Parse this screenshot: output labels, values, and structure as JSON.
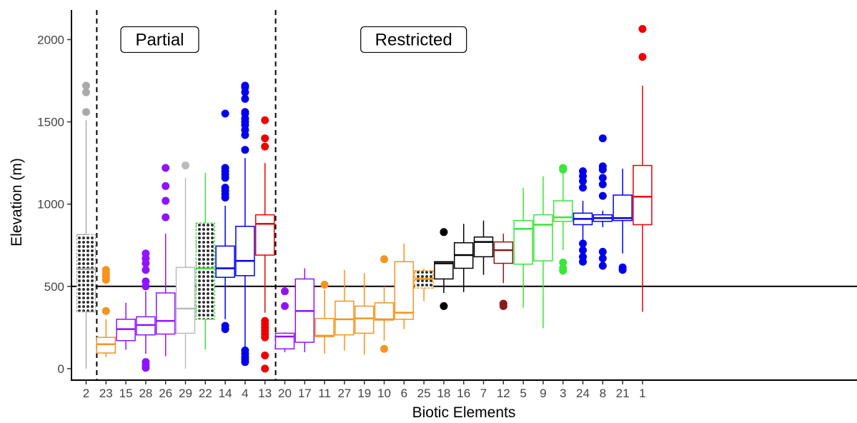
{
  "chart_data": {
    "type": "boxplot",
    "xlabel": "Biotic Elements",
    "ylabel": "Elevation (m)",
    "ylim": [
      -70,
      2180
    ],
    "y_ticks": [
      0,
      500,
      1000,
      1500,
      2000
    ],
    "reference_line": 500,
    "regions": [
      {
        "label": "Partial",
        "from_index": 1,
        "to_index": 9
      },
      {
        "label": "Restricted",
        "from_index": 10,
        "to_index": 28
      }
    ],
    "categories": [
      "2",
      "23",
      "15",
      "28",
      "26",
      "29",
      "22",
      "14",
      "4",
      "13",
      "20",
      "17",
      "11",
      "27",
      "19",
      "10",
      "6",
      "25",
      "18",
      "16",
      "7",
      "12",
      "5",
      "9",
      "3",
      "24",
      "8",
      "21",
      "1"
    ],
    "boxes": [
      {
        "label": "2",
        "color": "#aaaaaa",
        "hatched": true,
        "lower": 0,
        "q1": 345,
        "median": 605,
        "q3": 815,
        "upper": 1510,
        "outliers": [
          1560,
          1680,
          1720
        ]
      },
      {
        "label": "23",
        "color": "#f7931e",
        "hatched": false,
        "lower": 70,
        "q1": 95,
        "median": 148,
        "q3": 190,
        "upper": 300,
        "outliers": [
          350,
          540,
          560,
          580,
          600
        ]
      },
      {
        "label": "15",
        "color": "#9013fe",
        "hatched": false,
        "lower": 115,
        "q1": 170,
        "median": 240,
        "q3": 300,
        "upper": 400,
        "outliers": []
      },
      {
        "label": "28",
        "color": "#9013fe",
        "hatched": false,
        "lower": 90,
        "q1": 205,
        "median": 265,
        "q3": 315,
        "upper": 470,
        "outliers": [
          5,
          20,
          40,
          500,
          530,
          600,
          640,
          670,
          700
        ]
      },
      {
        "label": "26",
        "color": "#9013fe",
        "hatched": false,
        "lower": 75,
        "q1": 210,
        "median": 290,
        "q3": 460,
        "upper": 820,
        "outliers": [
          920,
          1020,
          1110,
          1220
        ]
      },
      {
        "label": "29",
        "color": "#bbbbbb",
        "hatched": false,
        "lower": 0,
        "q1": 215,
        "median": 365,
        "q3": 615,
        "upper": 1160,
        "outliers": [
          1235
        ]
      },
      {
        "label": "22",
        "color": "#39e639",
        "hatched": true,
        "lower": 115,
        "q1": 300,
        "median": 610,
        "q3": 885,
        "upper": 1190,
        "outliers": []
      },
      {
        "label": "14",
        "color": "#0000ee",
        "hatched": false,
        "lower": 300,
        "q1": 555,
        "median": 610,
        "q3": 745,
        "upper": 990,
        "outliers": [
          240,
          260,
          1040,
          1060,
          1080,
          1100,
          1160,
          1180,
          1200,
          1220,
          1550
        ]
      },
      {
        "label": "4",
        "color": "#0000ee",
        "hatched": false,
        "lower": 130,
        "q1": 565,
        "median": 655,
        "q3": 865,
        "upper": 1280,
        "outliers": [
          40,
          55,
          70,
          90,
          110,
          1330,
          1420,
          1450,
          1480,
          1500,
          1520,
          1550,
          1560,
          1640,
          1680,
          1710,
          1720
        ]
      },
      {
        "label": "13",
        "color": "#ee0000",
        "hatched": false,
        "lower": 340,
        "q1": 690,
        "median": 880,
        "q3": 935,
        "upper": 1250,
        "outliers": [
          0,
          80,
          190,
          210,
          230,
          250,
          270,
          290,
          1350,
          1400,
          1510
        ]
      },
      {
        "label": "20",
        "color": "#9013fe",
        "hatched": false,
        "lower": 100,
        "q1": 120,
        "median": 195,
        "q3": 215,
        "upper": 220,
        "outliers": [
          380,
          470
        ]
      },
      {
        "label": "17",
        "color": "#9013fe",
        "hatched": false,
        "lower": 100,
        "q1": 160,
        "median": 350,
        "q3": 545,
        "upper": 610,
        "outliers": []
      },
      {
        "label": "11",
        "color": "#f7931e",
        "hatched": false,
        "lower": 90,
        "q1": 195,
        "median": 200,
        "q3": 305,
        "upper": 480,
        "outliers": [
          510
        ]
      },
      {
        "label": "27",
        "color": "#f7931e",
        "hatched": false,
        "lower": 110,
        "q1": 205,
        "median": 300,
        "q3": 410,
        "upper": 600,
        "outliers": []
      },
      {
        "label": "19",
        "color": "#f7931e",
        "hatched": false,
        "lower": 85,
        "q1": 215,
        "median": 305,
        "q3": 380,
        "upper": 580,
        "outliers": []
      },
      {
        "label": "10",
        "color": "#f7931e",
        "hatched": false,
        "lower": 170,
        "q1": 295,
        "median": 300,
        "q3": 400,
        "upper": 500,
        "outliers": [
          120,
          665
        ]
      },
      {
        "label": "6",
        "color": "#f7931e",
        "hatched": false,
        "lower": 240,
        "q1": 300,
        "median": 340,
        "q3": 650,
        "upper": 760,
        "outliers": []
      },
      {
        "label": "25",
        "color": "#f7931e",
        "hatched": true,
        "lower": 410,
        "q1": 490,
        "median": 545,
        "q3": 595,
        "upper": 610,
        "outliers": []
      },
      {
        "label": "18",
        "color": "#000000",
        "hatched": false,
        "lower": 460,
        "q1": 545,
        "median": 640,
        "q3": 650,
        "upper": 650,
        "outliers": [
          380,
          830
        ]
      },
      {
        "label": "16",
        "color": "#000000",
        "hatched": false,
        "lower": 465,
        "q1": 610,
        "median": 690,
        "q3": 765,
        "upper": 880,
        "outliers": []
      },
      {
        "label": "7",
        "color": "#000000",
        "hatched": false,
        "lower": 570,
        "q1": 680,
        "median": 770,
        "q3": 800,
        "upper": 900,
        "outliers": []
      },
      {
        "label": "12",
        "color": "#8b1a1a",
        "hatched": false,
        "lower": 520,
        "q1": 640,
        "median": 720,
        "q3": 770,
        "upper": 820,
        "outliers": [
          380,
          395
        ]
      },
      {
        "label": "5",
        "color": "#39e639",
        "hatched": false,
        "lower": 370,
        "q1": 635,
        "median": 850,
        "q3": 900,
        "upper": 1100,
        "outliers": []
      },
      {
        "label": "9",
        "color": "#39e639",
        "hatched": false,
        "lower": 245,
        "q1": 655,
        "median": 875,
        "q3": 935,
        "upper": 1170,
        "outliers": []
      },
      {
        "label": "3",
        "color": "#39e639",
        "hatched": false,
        "lower": 720,
        "q1": 895,
        "median": 920,
        "q3": 1020,
        "upper": 1200,
        "outliers": [
          595,
          610,
          645,
          1210,
          1220
        ]
      },
      {
        "label": "24",
        "color": "#0000ee",
        "hatched": false,
        "lower": 780,
        "q1": 875,
        "median": 910,
        "q3": 945,
        "upper": 1020,
        "outliers": [
          650,
          680,
          720,
          760,
          1100,
          1140,
          1170,
          1200
        ]
      },
      {
        "label": "8",
        "color": "#0000ee",
        "hatched": false,
        "lower": 860,
        "q1": 895,
        "median": 915,
        "q3": 935,
        "upper": 960,
        "outliers": [
          625,
          670,
          710,
          1050,
          1120,
          1160,
          1210,
          1230,
          1400
        ]
      },
      {
        "label": "21",
        "color": "#0000ee",
        "hatched": false,
        "lower": 700,
        "q1": 900,
        "median": 915,
        "q3": 1055,
        "upper": 1215,
        "outliers": [
          600,
          615
        ]
      },
      {
        "label": "1",
        "color": "#ee0000",
        "hatched": false,
        "lower": 345,
        "q1": 875,
        "median": 1045,
        "q3": 1235,
        "upper": 1720,
        "outliers": [
          1895,
          2065
        ]
      }
    ]
  }
}
